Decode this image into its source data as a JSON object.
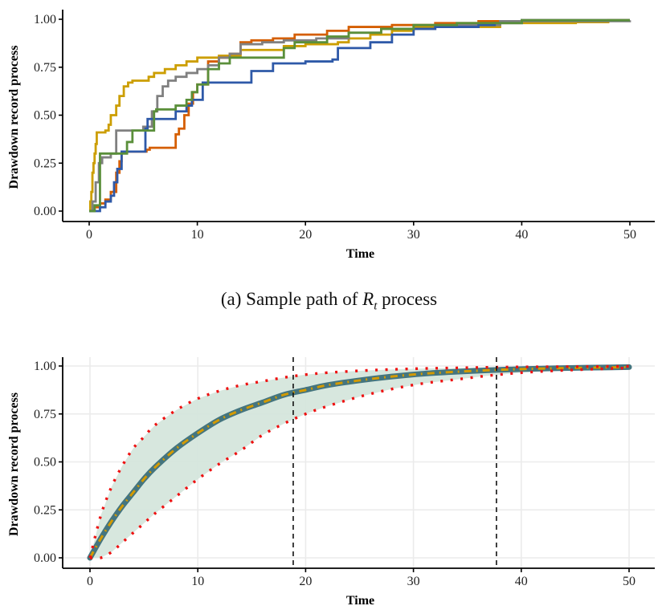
{
  "caption": {
    "prefix": "(a) Sample path of ",
    "var": "R",
    "sub": "t",
    "suffix": " process"
  },
  "chart_data": [
    {
      "type": "line",
      "title": "",
      "xlabel": "Time",
      "ylabel": "Drawdown record process",
      "xlim": [
        -2.5,
        52
      ],
      "ylim": [
        0,
        1
      ],
      "xticks": [
        0,
        10,
        20,
        30,
        40,
        50
      ],
      "xtick_labels": [
        "0",
        "10",
        "20",
        "30",
        "40",
        "50"
      ],
      "yticks": [
        0,
        0.25,
        0.5,
        0.75,
        1.0
      ],
      "ytick_labels": [
        "0.00",
        "0.25",
        "0.50",
        "0.75",
        "1.00"
      ],
      "grid": false,
      "step": true,
      "series": [
        {
          "name": "path-yellow",
          "color": "#CC9E00",
          "x": [
            0,
            0.1,
            0.2,
            0.3,
            0.4,
            0.5,
            0.6,
            0.7,
            1.5,
            1.8,
            2.0,
            2.5,
            2.8,
            3.2,
            3.6,
            4.0,
            5.5,
            6.0,
            7.0,
            8.0,
            9.0,
            10.0,
            12.0,
            14.0,
            18.0,
            20.0,
            23.0,
            24.0,
            26.0,
            28.0,
            30.0,
            38.0,
            45.0,
            48.0,
            50.0
          ],
          "y": [
            0,
            0.05,
            0.1,
            0.2,
            0.25,
            0.3,
            0.35,
            0.41,
            0.42,
            0.45,
            0.5,
            0.55,
            0.6,
            0.65,
            0.67,
            0.68,
            0.7,
            0.72,
            0.74,
            0.76,
            0.78,
            0.8,
            0.81,
            0.84,
            0.86,
            0.87,
            0.88,
            0.9,
            0.92,
            0.94,
            0.96,
            0.98,
            0.985,
            0.995,
            0.995
          ]
        },
        {
          "name": "path-orange",
          "color": "#D55E00",
          "x": [
            0,
            0.5,
            1.0,
            1.5,
            2.0,
            2.5,
            2.8,
            3.0,
            5.3,
            5.6,
            8.0,
            8.3,
            8.8,
            9.2,
            9.6,
            10.0,
            11.0,
            12.0,
            13.0,
            14.0,
            15.0,
            17.0,
            19.0,
            22.0,
            24.0,
            28.0,
            32.0,
            36.0,
            40.0,
            50.0
          ],
          "y": [
            0,
            0.02,
            0.04,
            0.06,
            0.1,
            0.2,
            0.26,
            0.31,
            0.32,
            0.33,
            0.4,
            0.43,
            0.5,
            0.56,
            0.62,
            0.66,
            0.78,
            0.8,
            0.82,
            0.88,
            0.89,
            0.9,
            0.92,
            0.94,
            0.96,
            0.97,
            0.98,
            0.99,
            0.995,
            0.995
          ]
        },
        {
          "name": "path-gray",
          "color": "#808080",
          "x": [
            0,
            0.3,
            0.6,
            0.9,
            1.2,
            2.0,
            2.5,
            5.0,
            5.8,
            6.3,
            6.8,
            7.3,
            8.0,
            9.0,
            10.0,
            11.0,
            12.0,
            13.0,
            14.0,
            16.0,
            18.0,
            21.0,
            24.0,
            27.0,
            32.0,
            38.0,
            50.0
          ],
          "y": [
            0,
            0.05,
            0.15,
            0.25,
            0.28,
            0.3,
            0.42,
            0.44,
            0.52,
            0.6,
            0.65,
            0.68,
            0.7,
            0.72,
            0.74,
            0.76,
            0.8,
            0.82,
            0.87,
            0.88,
            0.89,
            0.9,
            0.93,
            0.95,
            0.97,
            0.99,
            0.995
          ]
        },
        {
          "name": "path-blue",
          "color": "#2E59A8",
          "x": [
            0,
            1.0,
            1.5,
            2.0,
            2.3,
            2.6,
            3.0,
            5.2,
            5.4,
            8.0,
            9.0,
            9.5,
            10.5,
            12.0,
            14.0,
            15.0,
            17.0,
            20.0,
            22.5,
            23.0,
            26.0,
            28.0,
            30.0,
            32.0,
            36.0,
            37.5,
            40.0,
            50.0
          ],
          "y": [
            0,
            0.02,
            0.05,
            0.08,
            0.15,
            0.22,
            0.31,
            0.43,
            0.48,
            0.52,
            0.55,
            0.58,
            0.67,
            0.67,
            0.67,
            0.73,
            0.77,
            0.78,
            0.79,
            0.85,
            0.88,
            0.92,
            0.95,
            0.96,
            0.97,
            0.98,
            0.995,
            0.995
          ]
        },
        {
          "name": "path-green",
          "color": "#5A8F3A",
          "x": [
            0,
            0.5,
            1.0,
            3.5,
            4.0,
            6.0,
            6.2,
            8.0,
            9.0,
            9.5,
            10.0,
            11.0,
            12.0,
            13.0,
            18.0,
            19.0,
            22.0,
            24.0,
            27.0,
            30.0,
            34.0,
            40.0,
            50.0
          ],
          "y": [
            0,
            0.03,
            0.3,
            0.36,
            0.42,
            0.52,
            0.53,
            0.55,
            0.58,
            0.62,
            0.66,
            0.74,
            0.77,
            0.8,
            0.85,
            0.88,
            0.91,
            0.93,
            0.95,
            0.97,
            0.98,
            0.995,
            0.995
          ]
        }
      ]
    },
    {
      "type": "line",
      "title": "",
      "xlabel": "Time",
      "ylabel": "Drawdown record process",
      "xlim": [
        -2.5,
        52
      ],
      "ylim": [
        0,
        1
      ],
      "xticks": [
        0,
        10,
        20,
        30,
        40,
        50
      ],
      "xtick_labels": [
        "0",
        "10",
        "20",
        "30",
        "40",
        "50"
      ],
      "yticks": [
        0,
        0.25,
        0.5,
        0.75,
        1.0
      ],
      "ytick_labels": [
        "0.00",
        "0.25",
        "0.50",
        "0.75",
        "1.00"
      ],
      "grid": true,
      "x": [
        0,
        1,
        2,
        3,
        4,
        5,
        6,
        8,
        10,
        12,
        14,
        16,
        18,
        20,
        22,
        25,
        28,
        31,
        34,
        37,
        40,
        43,
        46,
        50
      ],
      "series": [
        {
          "name": "mean",
          "color": "#44757F",
          "style": "solid-thick",
          "y": [
            0.0,
            0.1,
            0.19,
            0.27,
            0.34,
            0.41,
            0.47,
            0.57,
            0.65,
            0.72,
            0.77,
            0.81,
            0.85,
            0.875,
            0.9,
            0.925,
            0.945,
            0.96,
            0.97,
            0.978,
            0.984,
            0.988,
            0.991,
            0.994
          ]
        },
        {
          "name": "theoretical",
          "color": "#D39A00",
          "style": "dashdot",
          "y": [
            0.0,
            0.1,
            0.19,
            0.27,
            0.34,
            0.41,
            0.47,
            0.57,
            0.65,
            0.72,
            0.77,
            0.81,
            0.85,
            0.875,
            0.9,
            0.925,
            0.945,
            0.96,
            0.97,
            0.978,
            0.984,
            0.988,
            0.991,
            0.994
          ]
        },
        {
          "name": "upper-band",
          "color": "#EE1111",
          "style": "dotted",
          "y": [
            0.0,
            0.22,
            0.37,
            0.48,
            0.57,
            0.63,
            0.69,
            0.77,
            0.83,
            0.87,
            0.9,
            0.92,
            0.94,
            0.955,
            0.965,
            0.975,
            0.982,
            0.987,
            0.99,
            0.993,
            0.995,
            0.996,
            0.997,
            0.998
          ]
        },
        {
          "name": "lower-band",
          "color": "#EE1111",
          "style": "dotted",
          "y": [
            0.0,
            0.0,
            0.03,
            0.08,
            0.13,
            0.18,
            0.23,
            0.32,
            0.41,
            0.49,
            0.56,
            0.64,
            0.7,
            0.75,
            0.79,
            0.84,
            0.88,
            0.91,
            0.93,
            0.95,
            0.965,
            0.975,
            0.982,
            0.99
          ]
        }
      ],
      "band_fill": "#D5E6DC",
      "vlines": [
        18.85,
        37.7
      ]
    }
  ]
}
